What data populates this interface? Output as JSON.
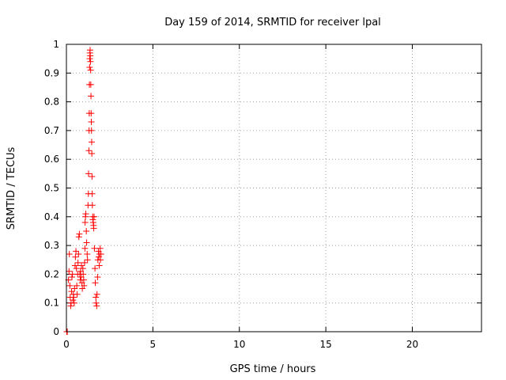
{
  "chart_data": {
    "type": "scatter",
    "title": "Day 159 of 2014, SRMTID for receiver lpal",
    "xlabel": "GPS time / hours",
    "ylabel": "SRMTID / TECUs",
    "xlim": [
      0,
      24
    ],
    "ylim": [
      0,
      1
    ],
    "xticks": [
      0,
      5,
      10,
      15,
      20
    ],
    "yticks": [
      0,
      0.1,
      0.2,
      0.3,
      0.4,
      0.5,
      0.6,
      0.7,
      0.8,
      0.9,
      1
    ],
    "ytick_labels": [
      "0",
      "0.1",
      "0.2",
      "0.3",
      "0.4",
      "0.5",
      "0.6",
      "0.7",
      "0.8",
      "0.9",
      "1"
    ],
    "grid": true,
    "marker": "+",
    "series": [
      {
        "color": "#ff0000",
        "points": [
          [
            0.02,
            0.0
          ],
          [
            0.03,
            0.0
          ],
          [
            0.04,
            0.0
          ],
          [
            0.05,
            0.0
          ],
          [
            0.12,
            0.18
          ],
          [
            0.15,
            0.21
          ],
          [
            0.17,
            0.27
          ],
          [
            0.2,
            0.16
          ],
          [
            0.22,
            0.12
          ],
          [
            0.25,
            0.09
          ],
          [
            0.27,
            0.1
          ],
          [
            0.3,
            0.14
          ],
          [
            0.32,
            0.19
          ],
          [
            0.35,
            0.2
          ],
          [
            0.38,
            0.11
          ],
          [
            0.4,
            0.13
          ],
          [
            0.42,
            0.12
          ],
          [
            0.45,
            0.1
          ],
          [
            0.47,
            0.15
          ],
          [
            0.5,
            0.23
          ],
          [
            0.52,
            0.26
          ],
          [
            0.55,
            0.28
          ],
          [
            0.58,
            0.22
          ],
          [
            0.6,
            0.16
          ],
          [
            0.62,
            0.13
          ],
          [
            0.65,
            0.2
          ],
          [
            0.67,
            0.24
          ],
          [
            0.7,
            0.27
          ],
          [
            0.72,
            0.33
          ],
          [
            0.75,
            0.34
          ],
          [
            0.78,
            0.2
          ],
          [
            0.8,
            0.18
          ],
          [
            0.82,
            0.21
          ],
          [
            0.85,
            0.19
          ],
          [
            0.87,
            0.23
          ],
          [
            0.9,
            0.17
          ],
          [
            0.92,
            0.15
          ],
          [
            0.95,
            0.22
          ],
          [
            0.97,
            0.2
          ],
          [
            1.0,
            0.18
          ],
          [
            1.02,
            0.16
          ],
          [
            1.05,
            0.24
          ],
          [
            1.07,
            0.29
          ],
          [
            1.08,
            0.38
          ],
          [
            1.1,
            0.4
          ],
          [
            1.12,
            0.41
          ],
          [
            1.15,
            0.35
          ],
          [
            1.17,
            0.31
          ],
          [
            1.2,
            0.27
          ],
          [
            1.22,
            0.25
          ],
          [
            1.25,
            0.44
          ],
          [
            1.27,
            0.48
          ],
          [
            1.28,
            0.55
          ],
          [
            1.3,
            0.63
          ],
          [
            1.31,
            0.7
          ],
          [
            1.32,
            0.76
          ],
          [
            1.33,
            0.86
          ],
          [
            1.34,
            0.92
          ],
          [
            1.35,
            0.95
          ],
          [
            1.36,
            0.97
          ],
          [
            1.37,
            0.98
          ],
          [
            1.38,
            0.96
          ],
          [
            1.39,
            0.94
          ],
          [
            1.4,
            0.91
          ],
          [
            1.41,
            0.86
          ],
          [
            1.42,
            0.82
          ],
          [
            1.43,
            0.76
          ],
          [
            1.44,
            0.73
          ],
          [
            1.45,
            0.7
          ],
          [
            1.46,
            0.66
          ],
          [
            1.47,
            0.62
          ],
          [
            1.48,
            0.54
          ],
          [
            1.49,
            0.48
          ],
          [
            1.5,
            0.44
          ],
          [
            1.52,
            0.4
          ],
          [
            1.53,
            0.39
          ],
          [
            1.55,
            0.38
          ],
          [
            1.57,
            0.37
          ],
          [
            1.58,
            0.36
          ],
          [
            1.6,
            0.4
          ],
          [
            1.62,
            0.29
          ],
          [
            1.65,
            0.22
          ],
          [
            1.67,
            0.17
          ],
          [
            1.7,
            0.12
          ],
          [
            1.72,
            0.1
          ],
          [
            1.75,
            0.09
          ],
          [
            1.77,
            0.13
          ],
          [
            1.8,
            0.19
          ],
          [
            1.82,
            0.25
          ],
          [
            1.85,
            0.28
          ],
          [
            1.87,
            0.26
          ],
          [
            1.9,
            0.23
          ],
          [
            1.92,
            0.27
          ],
          [
            1.95,
            0.29
          ],
          [
            1.97,
            0.25
          ],
          [
            2.0,
            0.27
          ]
        ]
      }
    ]
  }
}
